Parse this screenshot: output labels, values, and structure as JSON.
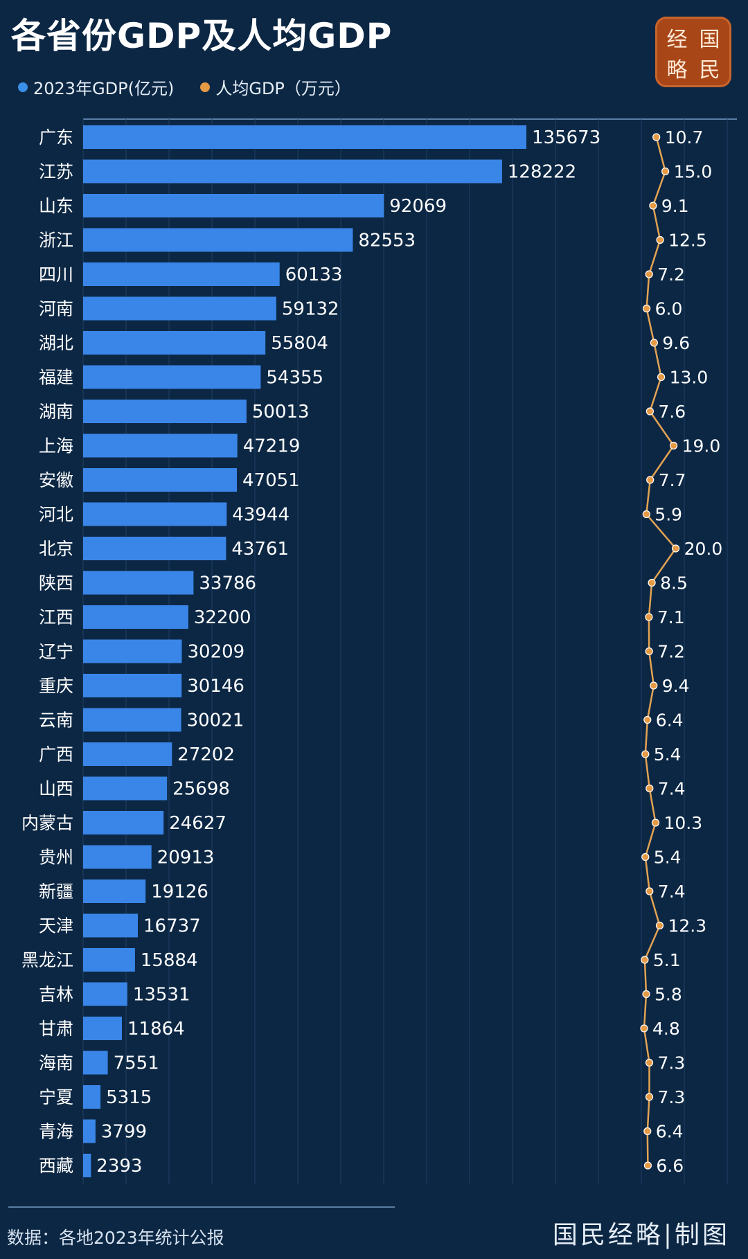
{
  "title": "各省份GDP及人均GDP",
  "logo": {
    "chars": [
      "经",
      "国",
      "略",
      "民"
    ]
  },
  "source": "数据：各地2023年统计公报",
  "credit": "国民经略|制图",
  "colors": {
    "background": "#0c2744",
    "bar": "#3a86e8",
    "line": "#e3a353",
    "dot": "#e59a45"
  },
  "chart_data": {
    "type": "bar",
    "orientation": "horizontal",
    "categories": [
      "广东",
      "江苏",
      "山东",
      "浙江",
      "四川",
      "河南",
      "湖北",
      "福建",
      "湖南",
      "上海",
      "安徽",
      "河北",
      "北京",
      "陕西",
      "江西",
      "辽宁",
      "重庆",
      "云南",
      "广西",
      "山西",
      "内蒙古",
      "贵州",
      "新疆",
      "天津",
      "黑龙江",
      "吉林",
      "甘肃",
      "海南",
      "宁夏",
      "青海",
      "西藏"
    ],
    "series": [
      {
        "name": "2023年GDP(亿元)",
        "type": "bar",
        "values": [
          135673,
          128222,
          92069,
          82553,
          60133,
          59132,
          55804,
          54355,
          50013,
          47219,
          47051,
          43944,
          43761,
          33786,
          32200,
          30209,
          30146,
          30021,
          27202,
          25698,
          24627,
          20913,
          19126,
          16737,
          15884,
          13531,
          11864,
          7551,
          5315,
          3799,
          2393
        ]
      },
      {
        "name": "人均GDP（万元）",
        "type": "line",
        "values": [
          "10.7",
          "15.0",
          "9.1",
          "12.5",
          "7.2",
          "6.0",
          "9.6",
          "13.0",
          "7.6",
          "19.0",
          "7.7",
          "5.9",
          "20.0",
          "8.5",
          "7.1",
          "7.2",
          "9.4",
          "6.4",
          "5.4",
          "7.4",
          "10.3",
          "5.4",
          "7.4",
          "12.3",
          "5.1",
          "5.8",
          "4.8",
          "7.3",
          "7.3",
          "6.4",
          "6.6"
        ]
      }
    ],
    "grid": true,
    "legend": "top-left"
  }
}
